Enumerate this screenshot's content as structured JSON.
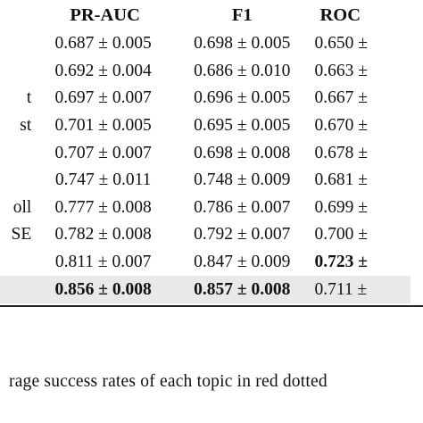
{
  "table": {
    "headers": {
      "name": "",
      "pr_auc": "PR-AUC",
      "f1": "F1",
      "roc": "ROC"
    },
    "rows": [
      {
        "name": "",
        "pr_auc": "0.687 ± 0.005",
        "f1": "0.698 ± 0.005",
        "roc": "0.650 ±",
        "bold": []
      },
      {
        "name": "",
        "pr_auc": "0.692 ± 0.004",
        "f1": "0.686 ± 0.010",
        "roc": "0.663 ±",
        "bold": []
      },
      {
        "name": "t",
        "pr_auc": "0.697 ± 0.007",
        "f1": "0.696 ± 0.005",
        "roc": "0.667 ±",
        "bold": []
      },
      {
        "name": "st",
        "pr_auc": "0.701 ± 0.005",
        "f1": "0.695 ± 0.005",
        "roc": "0.670 ±",
        "bold": []
      },
      {
        "name": "",
        "pr_auc": "0.707 ± 0.007",
        "f1": "0.698 ± 0.008",
        "roc": "0.678 ±",
        "bold": []
      },
      {
        "name": "",
        "pr_auc": "0.747 ± 0.011",
        "f1": "0.748 ± 0.009",
        "roc": "0.681 ±",
        "bold": []
      },
      {
        "name": "oll",
        "pr_auc": "0.777 ± 0.008",
        "f1": "0.786 ± 0.007",
        "roc": "0.699 ±",
        "bold": []
      },
      {
        "name": "SE",
        "pr_auc": "0.782 ± 0.008",
        "f1": "0.792 ± 0.007",
        "roc": "0.700 ±",
        "bold": []
      },
      {
        "name": "",
        "pr_auc": "0.811 ± 0.007",
        "f1": "0.847 ± 0.009",
        "roc": "0.723 ±",
        "bold": [
          "roc"
        ]
      },
      {
        "name": "",
        "pr_auc": "0.856 ± 0.008",
        "f1": "0.857 ± 0.008",
        "roc": "0.711 ±",
        "bold": [
          "pr_auc",
          "f1"
        ],
        "highlight": true
      }
    ]
  },
  "caption": "rage success rates of each topic in red dotted"
}
